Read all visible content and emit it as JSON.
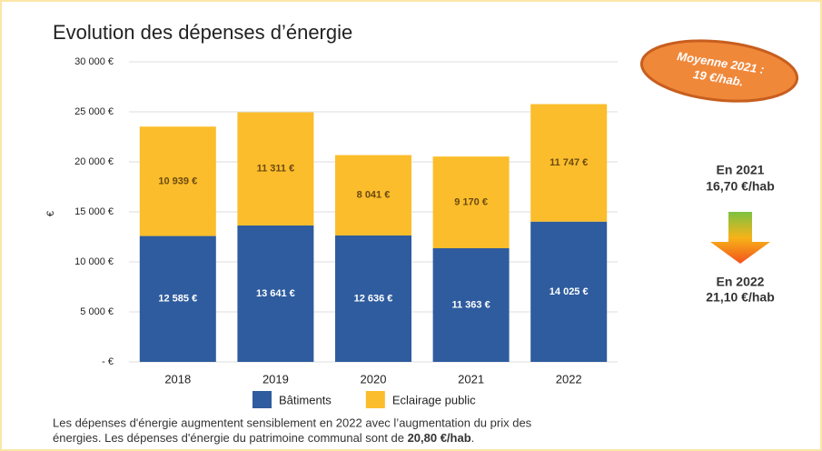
{
  "chart_data": {
    "type": "stacked_bar",
    "title": "Evolution des dépenses d’énergie",
    "y_label": "€",
    "categories": [
      "2018",
      "2019",
      "2020",
      "2021",
      "2022"
    ],
    "series": [
      {
        "name": "Bâtiments",
        "color": "#2e5c9e",
        "values": [
          12585,
          13641,
          12636,
          11363,
          14025
        ],
        "value_labels": [
          "12 585 €",
          "13 641 €",
          "12 636 €",
          "11 363 €",
          "14 025 €"
        ]
      },
      {
        "name": "Eclairage public",
        "color": "#fbbd2b",
        "values": [
          10939,
          11311,
          8041,
          9170,
          11747
        ],
        "value_labels": [
          "10 939 €",
          "11 311 €",
          "8 041 €",
          "9 170 €",
          "11 747 €"
        ]
      }
    ],
    "ylim": [
      0,
      30000
    ],
    "yticks": [
      {
        "value": 0,
        "label": "-   €"
      },
      {
        "value": 5000,
        "label": "5 000 €"
      },
      {
        "value": 10000,
        "label": "10 000 €"
      },
      {
        "value": 15000,
        "label": "15 000 €"
      },
      {
        "value": 20000,
        "label": "20 000 €"
      },
      {
        "value": 25000,
        "label": "25 000 €"
      },
      {
        "value": 30000,
        "label": "30 000 €"
      }
    ],
    "grid": true,
    "legend": "bottom"
  },
  "badge": {
    "line1": "Moyenne 2021 :",
    "line2": "19 €/hab."
  },
  "side": {
    "top_year": "En 2021",
    "top_value": "16,70 €/hab",
    "bottom_year": "En 2022",
    "bottom_value": "21,10 €/hab"
  },
  "note": {
    "line1": "Les dépenses d'énergie augmentent sensiblement en 2022 avec l’augmentation du prix des",
    "line2": "énergies. Les dépenses d'énergie du patrimoine communal sont de ",
    "bold": "20,80 €/hab",
    "end": "."
  }
}
